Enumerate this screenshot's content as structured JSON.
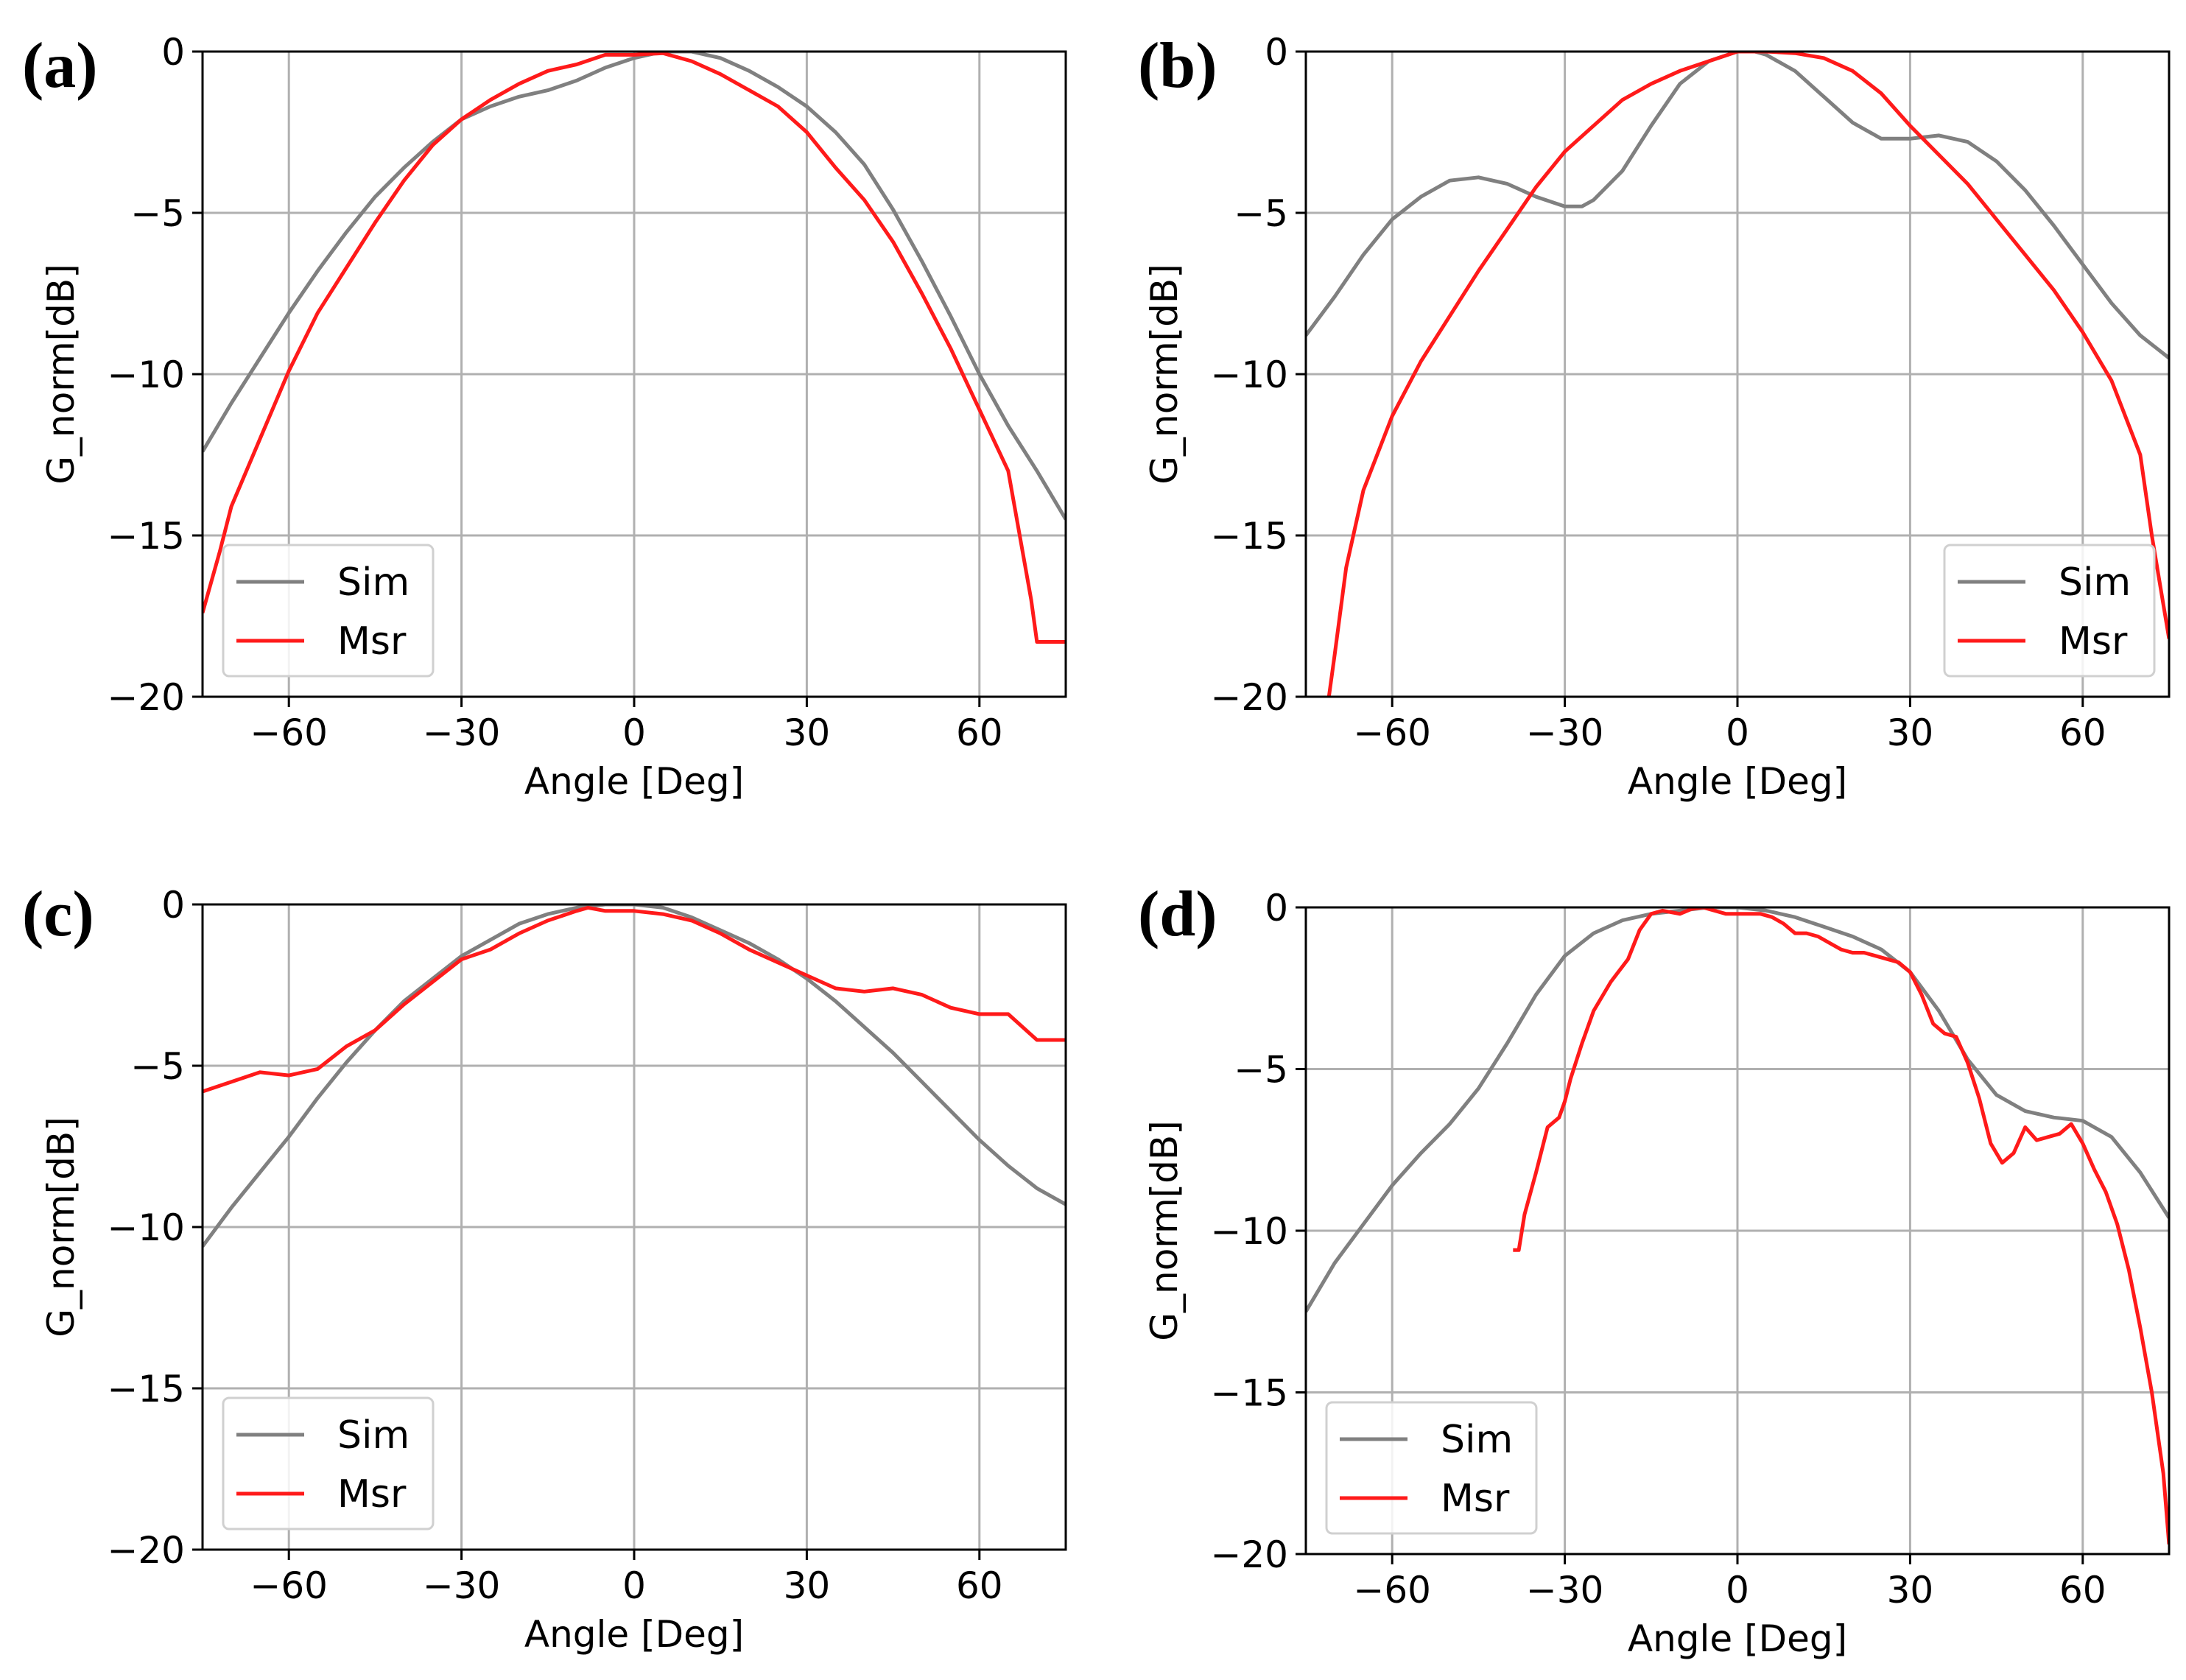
{
  "chart_data": [
    {
      "type": "line",
      "panel_label": "(a)",
      "xlabel": "Angle [Deg]",
      "ylabel": "G_norm[dB]",
      "xlim": [
        -75,
        75
      ],
      "ylim": [
        -20,
        0
      ],
      "xticks": [
        -60,
        -30,
        0,
        30,
        60
      ],
      "xtick_labels": [
        "−60",
        "−30",
        "0",
        "30",
        "60"
      ],
      "yticks": [
        0,
        -5,
        -10,
        -15,
        -20
      ],
      "ytick_labels": [
        "0",
        "−5",
        "−10",
        "−15",
        "−20"
      ],
      "grid": true,
      "legend_position": "lower-left",
      "series": [
        {
          "name": "Sim",
          "color": "#808080",
          "x": [
            -75,
            -70,
            -65,
            -60,
            -55,
            -50,
            -45,
            -40,
            -35,
            -30,
            -25,
            -20,
            -15,
            -10,
            -5,
            0,
            5,
            10,
            15,
            20,
            25,
            30,
            35,
            40,
            45,
            50,
            55,
            60,
            65,
            70,
            75
          ],
          "y": [
            -12.4,
            -10.9,
            -9.5,
            -8.1,
            -6.8,
            -5.6,
            -4.5,
            -3.6,
            -2.8,
            -2.1,
            -1.7,
            -1.4,
            -1.2,
            -0.9,
            -0.5,
            -0.2,
            0,
            0,
            -0.2,
            -0.6,
            -1.1,
            -1.7,
            -2.5,
            -3.5,
            -4.9,
            -6.5,
            -8.2,
            -10.0,
            -11.6,
            -13.0,
            -14.5
          ]
        },
        {
          "name": "Msr",
          "color": "#ff1a1a",
          "x": [
            -75,
            -72,
            -70,
            -65,
            -60,
            -55,
            -50,
            -45,
            -40,
            -35,
            -30,
            -25,
            -20,
            -15,
            -10,
            -5,
            0,
            5,
            10,
            15,
            20,
            25,
            30,
            35,
            40,
            45,
            50,
            55,
            60,
            65,
            69,
            70,
            75
          ],
          "y": [
            -17.4,
            -15.5,
            -14.1,
            -12.0,
            -9.9,
            -8.1,
            -6.7,
            -5.3,
            -4.0,
            -2.9,
            -2.1,
            -1.5,
            -1.0,
            -0.6,
            -0.4,
            -0.1,
            -0.1,
            -0.05,
            -0.3,
            -0.7,
            -1.2,
            -1.7,
            -2.5,
            -3.6,
            -4.6,
            -5.9,
            -7.5,
            -9.2,
            -11.1,
            -13.0,
            -17.0,
            -18.3,
            -18.3
          ]
        }
      ]
    },
    {
      "type": "line",
      "panel_label": "(b)",
      "xlabel": "Angle [Deg]",
      "ylabel": "G_norm[dB]",
      "xlim": [
        -75,
        75
      ],
      "ylim": [
        -20,
        0
      ],
      "xticks": [
        -60,
        -30,
        0,
        30,
        60
      ],
      "xtick_labels": [
        "−60",
        "−30",
        "0",
        "30",
        "60"
      ],
      "yticks": [
        0,
        -5,
        -10,
        -15,
        -20
      ],
      "ytick_labels": [
        "0",
        "−5",
        "−10",
        "−15",
        "−20"
      ],
      "grid": true,
      "legend_position": "lower-right",
      "series": [
        {
          "name": "Sim",
          "color": "#808080",
          "x": [
            -75,
            -70,
            -65,
            -60,
            -55,
            -50,
            -45,
            -40,
            -35,
            -30,
            -27,
            -25,
            -20,
            -15,
            -10,
            -5,
            0,
            3,
            5,
            10,
            15,
            20,
            25,
            30,
            35,
            40,
            45,
            50,
            55,
            60,
            65,
            70,
            75
          ],
          "y": [
            -8.8,
            -7.6,
            -6.3,
            -5.2,
            -4.5,
            -4.0,
            -3.9,
            -4.1,
            -4.5,
            -4.8,
            -4.8,
            -4.6,
            -3.7,
            -2.3,
            -1.0,
            -0.3,
            0,
            0,
            -0.1,
            -0.6,
            -1.4,
            -2.2,
            -2.7,
            -2.7,
            -2.6,
            -2.8,
            -3.4,
            -4.3,
            -5.4,
            -6.6,
            -7.8,
            -8.8,
            -9.5
          ]
        },
        {
          "name": "Msr",
          "color": "#ff1a1a",
          "x": [
            -71,
            -70,
            -68,
            -65,
            -60,
            -55,
            -50,
            -45,
            -40,
            -35,
            -30,
            -25,
            -20,
            -15,
            -10,
            -5,
            0,
            5,
            10,
            15,
            20,
            25,
            30,
            35,
            40,
            45,
            50,
            55,
            60,
            65,
            70,
            72,
            75
          ],
          "y": [
            -20,
            -18.7,
            -16.0,
            -13.6,
            -11.3,
            -9.6,
            -8.2,
            -6.8,
            -5.5,
            -4.2,
            -3.1,
            -2.3,
            -1.5,
            -1.0,
            -0.6,
            -0.3,
            0,
            0,
            -0.05,
            -0.2,
            -0.6,
            -1.3,
            -2.3,
            -3.2,
            -4.1,
            -5.2,
            -6.3,
            -7.4,
            -8.7,
            -10.2,
            -12.5,
            -15.0,
            -18.2
          ]
        }
      ]
    },
    {
      "type": "line",
      "panel_label": "(c)",
      "xlabel": "Angle [Deg]",
      "ylabel": "G_norm[dB]",
      "xlim": [
        -75,
        75
      ],
      "ylim": [
        -20,
        0
      ],
      "xticks": [
        -60,
        -30,
        0,
        30,
        60
      ],
      "xtick_labels": [
        "−60",
        "−30",
        "0",
        "30",
        "60"
      ],
      "yticks": [
        0,
        -5,
        -10,
        -15,
        -20
      ],
      "ytick_labels": [
        "0",
        "−5",
        "−10",
        "−15",
        "−20"
      ],
      "grid": true,
      "legend_position": "lower-left",
      "series": [
        {
          "name": "Sim",
          "color": "#808080",
          "x": [
            -75,
            -70,
            -65,
            -60,
            -55,
            -50,
            -45,
            -40,
            -35,
            -30,
            -25,
            -20,
            -15,
            -10,
            -5,
            0,
            5,
            10,
            15,
            20,
            25,
            30,
            35,
            40,
            45,
            50,
            55,
            60,
            65,
            70,
            75
          ],
          "y": [
            -10.6,
            -9.4,
            -8.3,
            -7.2,
            -6.0,
            -4.9,
            -3.9,
            -3.0,
            -2.3,
            -1.6,
            -1.1,
            -0.6,
            -0.3,
            -0.1,
            0,
            0,
            -0.1,
            -0.4,
            -0.8,
            -1.2,
            -1.7,
            -2.3,
            -3.0,
            -3.8,
            -4.6,
            -5.5,
            -6.4,
            -7.3,
            -8.1,
            -8.8,
            -9.3
          ]
        },
        {
          "name": "Msr",
          "color": "#ff1a1a",
          "x": [
            -75,
            -70,
            -65,
            -60,
            -55,
            -50,
            -45,
            -40,
            -35,
            -30,
            -25,
            -20,
            -15,
            -10,
            -8,
            -5,
            0,
            5,
            10,
            15,
            20,
            25,
            30,
            35,
            40,
            45,
            50,
            55,
            60,
            65,
            70,
            75
          ],
          "y": [
            -5.8,
            -5.5,
            -5.2,
            -5.3,
            -5.1,
            -4.4,
            -3.9,
            -3.1,
            -2.4,
            -1.7,
            -1.4,
            -0.9,
            -0.5,
            -0.2,
            -0.1,
            -0.2,
            -0.2,
            -0.3,
            -0.5,
            -0.9,
            -1.4,
            -1.8,
            -2.2,
            -2.6,
            -2.7,
            -2.6,
            -2.8,
            -3.2,
            -3.4,
            -3.4,
            -4.2,
            -4.2
          ]
        }
      ]
    },
    {
      "type": "line",
      "panel_label": "(d)",
      "xlabel": "Angle [Deg]",
      "ylabel": "G_norm[dB]",
      "xlim": [
        -75,
        75
      ],
      "ylim": [
        -20,
        0
      ],
      "xticks": [
        -60,
        -30,
        0,
        30,
        60
      ],
      "xtick_labels": [
        "−60",
        "−30",
        "0",
        "30",
        "60"
      ],
      "yticks": [
        0,
        -5,
        -10,
        -15,
        -20
      ],
      "ytick_labels": [
        "0",
        "−5",
        "−10",
        "−15",
        "−20"
      ],
      "grid": true,
      "legend_position": "lower-left",
      "series": [
        {
          "name": "Sim",
          "color": "#808080",
          "x": [
            -75,
            -70,
            -65,
            -60,
            -55,
            -50,
            -45,
            -40,
            -35,
            -30,
            -25,
            -20,
            -15,
            -10,
            -5,
            0,
            5,
            10,
            15,
            20,
            25,
            30,
            35,
            40,
            45,
            50,
            55,
            60,
            65,
            70,
            75
          ],
          "y": [
            -12.5,
            -11.0,
            -9.8,
            -8.6,
            -7.6,
            -6.7,
            -5.6,
            -4.2,
            -2.7,
            -1.5,
            -0.8,
            -0.4,
            -0.2,
            -0.1,
            0,
            0,
            -0.1,
            -0.3,
            -0.6,
            -0.9,
            -1.3,
            -2.0,
            -3.2,
            -4.7,
            -5.8,
            -6.3,
            -6.5,
            -6.6,
            -7.1,
            -8.2,
            -9.6
          ]
        },
        {
          "name": "Msr",
          "color": "#ff1a1a",
          "x": [
            -39,
            -38,
            -37,
            -35,
            -33,
            -31,
            -30,
            -29,
            -27,
            -25,
            -22,
            -19,
            -17,
            -15,
            -13,
            -10,
            -8,
            -6,
            -4,
            -2,
            0,
            2,
            4,
            6,
            8,
            10,
            12,
            14,
            16,
            18,
            20,
            22,
            24,
            26,
            28,
            30,
            32,
            34,
            36,
            38,
            40,
            42,
            44,
            46,
            48,
            50,
            52,
            54,
            56,
            58,
            60,
            62,
            64,
            66,
            68,
            70,
            72,
            74,
            75
          ],
          "y": [
            -10.6,
            -10.6,
            -9.5,
            -8.2,
            -6.8,
            -6.5,
            -6.0,
            -5.3,
            -4.2,
            -3.2,
            -2.3,
            -1.6,
            -0.7,
            -0.2,
            -0.1,
            -0.2,
            -0.05,
            0,
            -0.1,
            -0.2,
            -0.2,
            -0.2,
            -0.2,
            -0.3,
            -0.5,
            -0.8,
            -0.8,
            -0.9,
            -1.1,
            -1.3,
            -1.4,
            -1.4,
            -1.5,
            -1.6,
            -1.7,
            -2.0,
            -2.7,
            -3.6,
            -3.9,
            -4.0,
            -4.8,
            -5.9,
            -7.3,
            -7.9,
            -7.6,
            -6.8,
            -7.2,
            -7.1,
            -7.0,
            -6.7,
            -7.3,
            -8.1,
            -8.8,
            -9.8,
            -11.2,
            -13.0,
            -15.0,
            -17.5,
            -19.7
          ]
        }
      ]
    }
  ]
}
